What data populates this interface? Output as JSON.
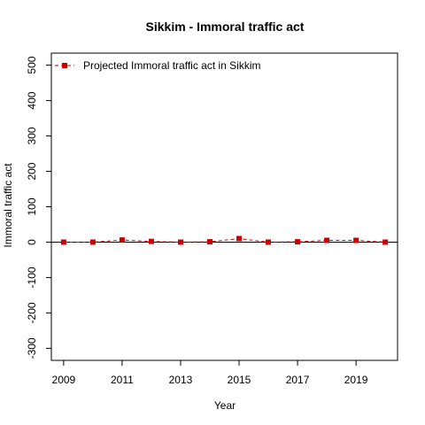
{
  "chart_data": {
    "type": "line",
    "title": "Sikkim  -  Immoral traffic act",
    "xlabel": "Year",
    "ylabel": "Immoral traffic act",
    "x": [
      2009,
      2010,
      2011,
      2012,
      2013,
      2014,
      2015,
      2016,
      2017,
      2018,
      2019,
      2020
    ],
    "series": [
      {
        "name": "Projected  Immoral traffic act  in  Sikkim",
        "values": [
          0,
          0,
          6,
          2,
          0,
          1,
          10,
          0,
          1,
          5,
          5,
          0
        ],
        "color": "#cc0000"
      }
    ],
    "xticks": [
      2009,
      2011,
      2013,
      2015,
      2017,
      2019
    ],
    "yticks": [
      -300,
      -200,
      -100,
      0,
      100,
      200,
      300,
      400,
      500
    ],
    "xlim": [
      2008.58,
      2020.42
    ],
    "ylim": [
      -334,
      534
    ],
    "reference_line": 0,
    "legend_position": "top-left",
    "grid": false
  }
}
